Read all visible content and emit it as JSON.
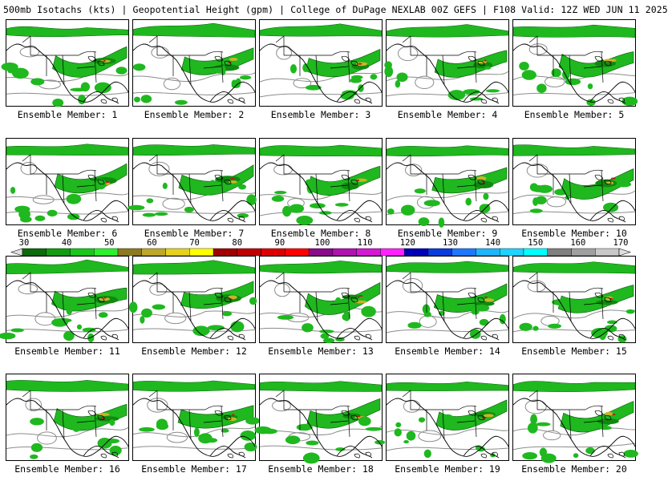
{
  "header": {
    "title": "500mb Isotachs (kts) | Geopotential Height (gpm) | College of DuPage NEXLAB   00Z GEFS | F108 Valid: 12Z WED JUN 11 2025"
  },
  "panels": [
    {
      "label": "Ensemble Member: 1"
    },
    {
      "label": "Ensemble Member: 2"
    },
    {
      "label": "Ensemble Member: 3"
    },
    {
      "label": "Ensemble Member: 4"
    },
    {
      "label": "Ensemble Member: 5"
    },
    {
      "label": "Ensemble Member: 6"
    },
    {
      "label": "Ensemble Member: 7"
    },
    {
      "label": "Ensemble Member: 8"
    },
    {
      "label": "Ensemble Member: 9"
    },
    {
      "label": "Ensemble Member: 10"
    },
    {
      "label": "Ensemble Member: 11"
    },
    {
      "label": "Ensemble Member: 12"
    },
    {
      "label": "Ensemble Member: 13"
    },
    {
      "label": "Ensemble Member: 14"
    },
    {
      "label": "Ensemble Member: 15"
    },
    {
      "label": "Ensemble Member: 16"
    },
    {
      "label": "Ensemble Member: 17"
    },
    {
      "label": "Ensemble Member: 18"
    },
    {
      "label": "Ensemble Member: 19"
    },
    {
      "label": "Ensemble Member: 20"
    }
  ],
  "colorbar": {
    "labels": [
      "30",
      "40",
      "50",
      "60",
      "70",
      "80",
      "90",
      "100",
      "110",
      "120",
      "130",
      "140",
      "150",
      "160",
      "170"
    ],
    "colors": [
      "#0c6b0c",
      "#139c13",
      "#1ac81a",
      "#2ef02e",
      "#8c7a20",
      "#bfa828",
      "#e6d21e",
      "#ffff00",
      "#a00000",
      "#be0000",
      "#dc0000",
      "#ff0000",
      "#8a0a8a",
      "#b012b0",
      "#d21ad2",
      "#ff22ff",
      "#0000b4",
      "#0a3cdc",
      "#1e78ff",
      "#1eb4ff",
      "#20d2ff",
      "#00ffff",
      "#808080",
      "#a0a0a0",
      "#c8c8c8"
    ]
  },
  "colors": {
    "wind_light": "#1fb81f",
    "wind_mid": "#0f8a0f",
    "wind_dark": "#0a5c0a",
    "jet_core": "#c8b428",
    "jet_max": "#b01e1e",
    "height_contour": "#8c8c8c"
  }
}
